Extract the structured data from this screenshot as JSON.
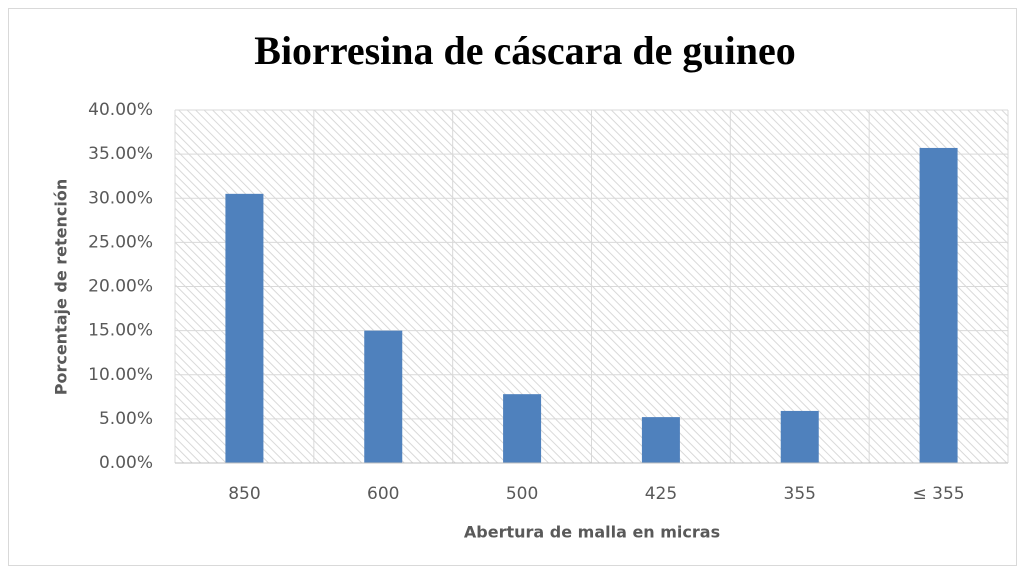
{
  "chart_data": {
    "type": "bar",
    "title": "Biorresina de cáscara de guineo",
    "x_label": "Abertura de malla en micras",
    "y_label": "Porcentaje de retención",
    "categories": [
      "850",
      "600",
      "500",
      "425",
      "355",
      "≤ 355"
    ],
    "values": [
      30.5,
      15.0,
      7.8,
      5.2,
      5.9,
      35.7
    ],
    "color": "#4f81bd",
    "ylim": [
      0,
      40
    ],
    "yticks": [
      {
        "value": 0,
        "label": "0.00%"
      },
      {
        "value": 5,
        "label": "5.00%"
      },
      {
        "value": 10,
        "label": "10.00%"
      },
      {
        "value": 15,
        "label": "15.00%"
      },
      {
        "value": 20,
        "label": "20.00%"
      },
      {
        "value": 25,
        "label": "25.00%"
      },
      {
        "value": 30,
        "label": "30.00%"
      },
      {
        "value": 35,
        "label": "35.00%"
      },
      {
        "value": 40,
        "label": "40.00%"
      }
    ],
    "grid": true
  }
}
